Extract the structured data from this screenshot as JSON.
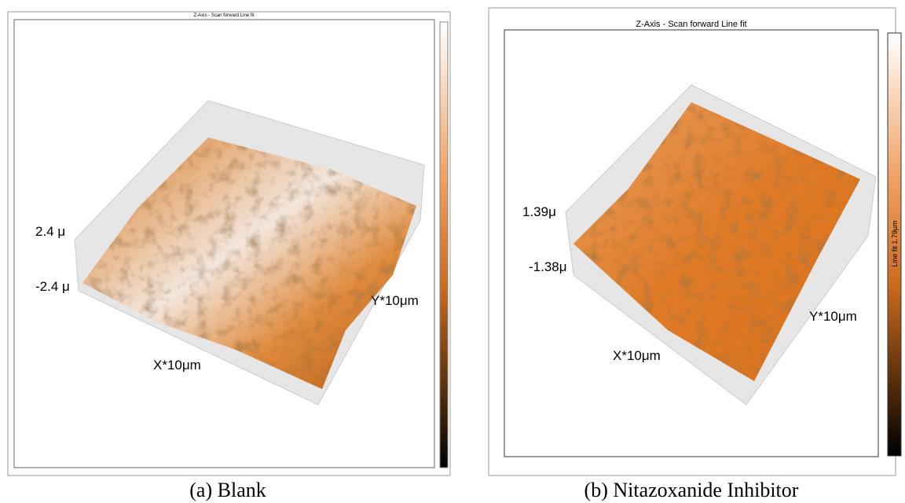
{
  "panels": [
    {
      "title": "Z-Axis - Scan forward  Line fit",
      "z_top": "2.4 μ",
      "z_bottom": "-2.4 μ",
      "x_label": "X*10μm",
      "y_label": "Y*10μm",
      "caption": "(a) Blank"
    },
    {
      "title": "Z-Axis - Scan forward   Line fit",
      "z_top": "1.39μ",
      "z_bottom": "-1.38μ",
      "x_label": "X*10μm",
      "y_label": "Y*10μm",
      "colorbar_label": "Line fit 1.79µm",
      "caption": "(b) Nitazoxanide Inhibitor"
    }
  ]
}
